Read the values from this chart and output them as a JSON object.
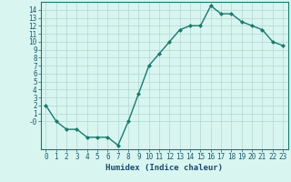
{
  "xlabel": "Humidex (Indice chaleur)",
  "x": [
    0,
    1,
    2,
    3,
    4,
    5,
    6,
    7,
    8,
    9,
    10,
    11,
    12,
    13,
    14,
    15,
    16,
    17,
    18,
    19,
    20,
    21,
    22,
    23
  ],
  "y": [
    2,
    0,
    -1,
    -1,
    -2,
    -2,
    -2,
    -3,
    0,
    3.5,
    7,
    8.5,
    10,
    11.5,
    12,
    12,
    14.5,
    13.5,
    13.5,
    12.5,
    12,
    11.5,
    10,
    9.5
  ],
  "line_color": "#1a7a6e",
  "marker": "D",
  "marker_size": 2.0,
  "bg_color": "#d8f5f0",
  "grid_color": "#b0d8d0",
  "spine_color": "#1a7a6e",
  "tick_color": "#1a5a6e",
  "label_color": "#1a4a6e",
  "ylim": [
    -3.5,
    15.0
  ],
  "xlim": [
    -0.5,
    23.5
  ],
  "yticks": [
    14,
    13,
    12,
    11,
    10,
    9,
    8,
    7,
    6,
    5,
    4,
    3,
    2,
    1,
    0
  ],
  "ytick_labels": [
    "14",
    "13",
    "12",
    "11",
    "10",
    "9",
    "8",
    "7",
    "6",
    "5",
    "4",
    "3",
    "2",
    "1",
    "-0"
  ],
  "xtick_labels": [
    "0",
    "1",
    "2",
    "3",
    "4",
    "5",
    "6",
    "7",
    "8",
    "9",
    "10",
    "11",
    "12",
    "13",
    "14",
    "15",
    "16",
    "17",
    "18",
    "19",
    "20",
    "21",
    "22",
    "23"
  ],
  "tick_fontsize": 5.5,
  "xlabel_fontsize": 6.5,
  "line_width": 1.0
}
